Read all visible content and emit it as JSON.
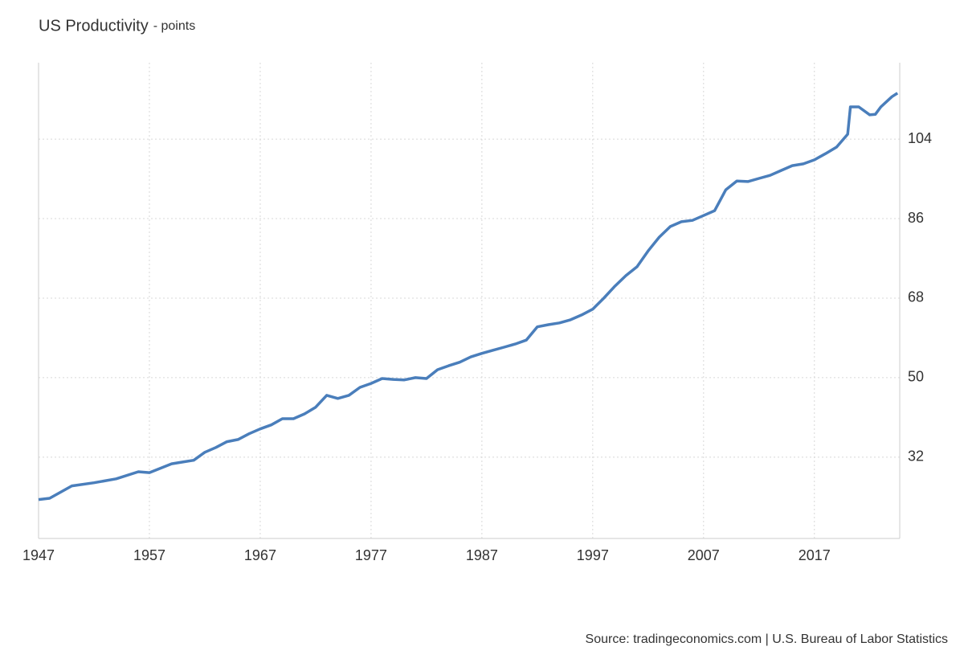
{
  "chart_data": {
    "type": "line",
    "title": "US Productivity",
    "subtitle": "- points",
    "source": "Source: tradingeconomics.com | U.S. Bureau of Labor Statistics",
    "x": [
      1947,
      1948,
      1950,
      1952,
      1954,
      1956,
      1957,
      1958,
      1959,
      1960,
      1961,
      1962,
      1963,
      1964,
      1965,
      1966,
      1967,
      1968,
      1969,
      1970,
      1971,
      1972,
      1973,
      1974,
      1975,
      1976,
      1977,
      1978,
      1979,
      1980,
      1981,
      1982,
      1983,
      1984,
      1985,
      1986,
      1987,
      1988,
      1989,
      1990,
      1991,
      1992,
      1993,
      1994,
      1995,
      1996,
      1997,
      1998,
      1999,
      2000,
      2001,
      2002,
      2003,
      2004,
      2005,
      2006,
      2007,
      2008,
      2009,
      2010,
      2011,
      2012,
      2013,
      2014,
      2015,
      2016,
      2017,
      2018,
      2019,
      2020,
      2020.25,
      2021,
      2022,
      2022.5,
      2023,
      2024,
      2024.5
    ],
    "series": [
      {
        "name": "US Productivity",
        "color": "#4a7ebb",
        "values": [
          22.4,
          22.7,
          25.5,
          26.2,
          27.1,
          28.7,
          28.5,
          29.5,
          30.5,
          30.9,
          31.3,
          33.1,
          34.2,
          35.5,
          36,
          37.3,
          38.4,
          39.3,
          40.7,
          40.7,
          41.8,
          43.3,
          46,
          45.3,
          46,
          47.8,
          48.7,
          49.8,
          49.6,
          49.5,
          50,
          49.8,
          51.8,
          52.7,
          53.5,
          54.7,
          55.5,
          56.2,
          56.9,
          57.6,
          58.5,
          61.5,
          62,
          62.4,
          63.1,
          64.2,
          65.5,
          68,
          70.7,
          73.1,
          75.1,
          78.7,
          81.8,
          84.2,
          85.3,
          85.6,
          86.7,
          87.8,
          92.5,
          94.5,
          94.4,
          95.1,
          95.8,
          96.9,
          98,
          98.4,
          99.3,
          100.7,
          102.2,
          105.1,
          111.3,
          111.3,
          109.5,
          109.6,
          111.3,
          113.6,
          114.4
        ]
      }
    ],
    "xlim": [
      1947,
      2024.7
    ],
    "xticks": [
      1947,
      1957,
      1967,
      1977,
      1987,
      1997,
      2007,
      2017
    ],
    "ylim": [
      13.6,
      121.3
    ],
    "yticks": [
      32,
      50,
      68,
      86,
      104
    ],
    "grid": true
  }
}
